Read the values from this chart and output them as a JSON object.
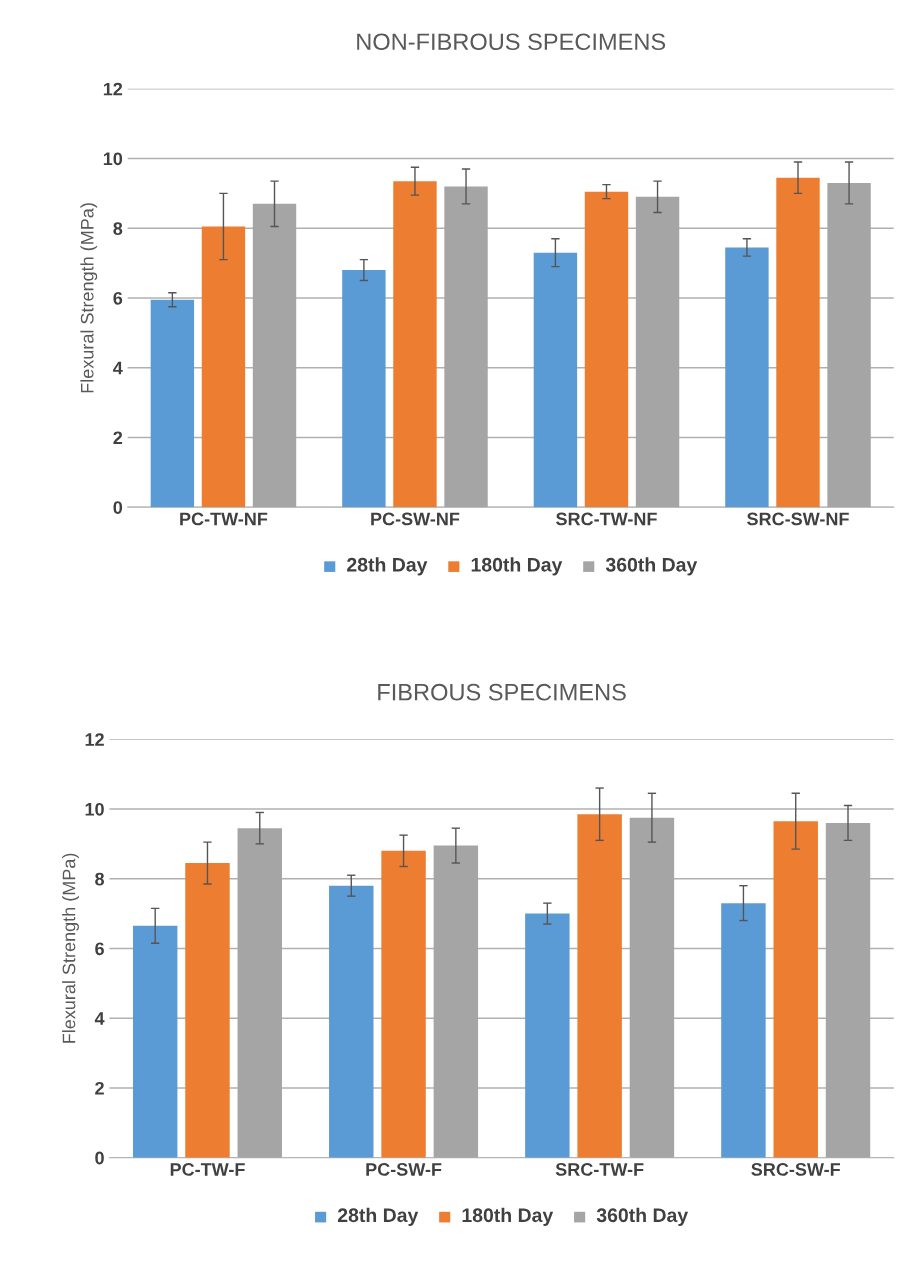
{
  "chart_data": [
    {
      "type": "bar",
      "title": "NON-FIBROUS SPECIMENS",
      "ylabel": "Flexural Strength (MPa)",
      "categories": [
        "PC-TW-NF",
        "PC-SW-NF",
        "SRC-TW-NF",
        "SRC-SW-NF"
      ],
      "ylim": [
        0,
        12
      ],
      "yticks": [
        0,
        2,
        4,
        6,
        8,
        10,
        12
      ],
      "grid": "y",
      "legend": "bottom",
      "series": [
        {
          "name": "28th Day",
          "color": "#5b9bd5",
          "values": [
            5.95,
            6.8,
            7.3,
            7.45
          ],
          "errors": [
            0.2,
            0.3,
            0.4,
            0.25
          ]
        },
        {
          "name": "180th Day",
          "color": "#ed7d31",
          "values": [
            8.05,
            9.35,
            9.05,
            9.45
          ],
          "errors": [
            0.95,
            0.4,
            0.2,
            0.45
          ]
        },
        {
          "name": "360th Day",
          "color": "#a5a5a5",
          "values": [
            8.7,
            9.2,
            8.9,
            9.3
          ],
          "errors": [
            0.65,
            0.5,
            0.45,
            0.6
          ]
        }
      ]
    },
    {
      "type": "bar",
      "title": "FIBROUS SPECIMENS",
      "ylabel": "Flexural Strength (MPa)",
      "categories": [
        "PC-TW-F",
        "PC-SW-F",
        "SRC-TW-F",
        "SRC-SW-F"
      ],
      "ylim": [
        0,
        12
      ],
      "yticks": [
        0,
        2,
        4,
        6,
        8,
        10,
        12
      ],
      "grid": "y",
      "legend": "bottom",
      "series": [
        {
          "name": "28th Day",
          "color": "#5b9bd5",
          "values": [
            6.65,
            7.8,
            7.0,
            7.3
          ],
          "errors": [
            0.5,
            0.3,
            0.3,
            0.5
          ]
        },
        {
          "name": "180th Day",
          "color": "#ed7d31",
          "values": [
            8.45,
            8.8,
            9.85,
            9.65
          ],
          "errors": [
            0.6,
            0.45,
            0.75,
            0.8
          ]
        },
        {
          "name": "360th Day",
          "color": "#a5a5a5",
          "values": [
            9.45,
            8.95,
            9.75,
            9.6
          ],
          "errors": [
            0.45,
            0.5,
            0.7,
            0.5
          ]
        }
      ]
    }
  ]
}
